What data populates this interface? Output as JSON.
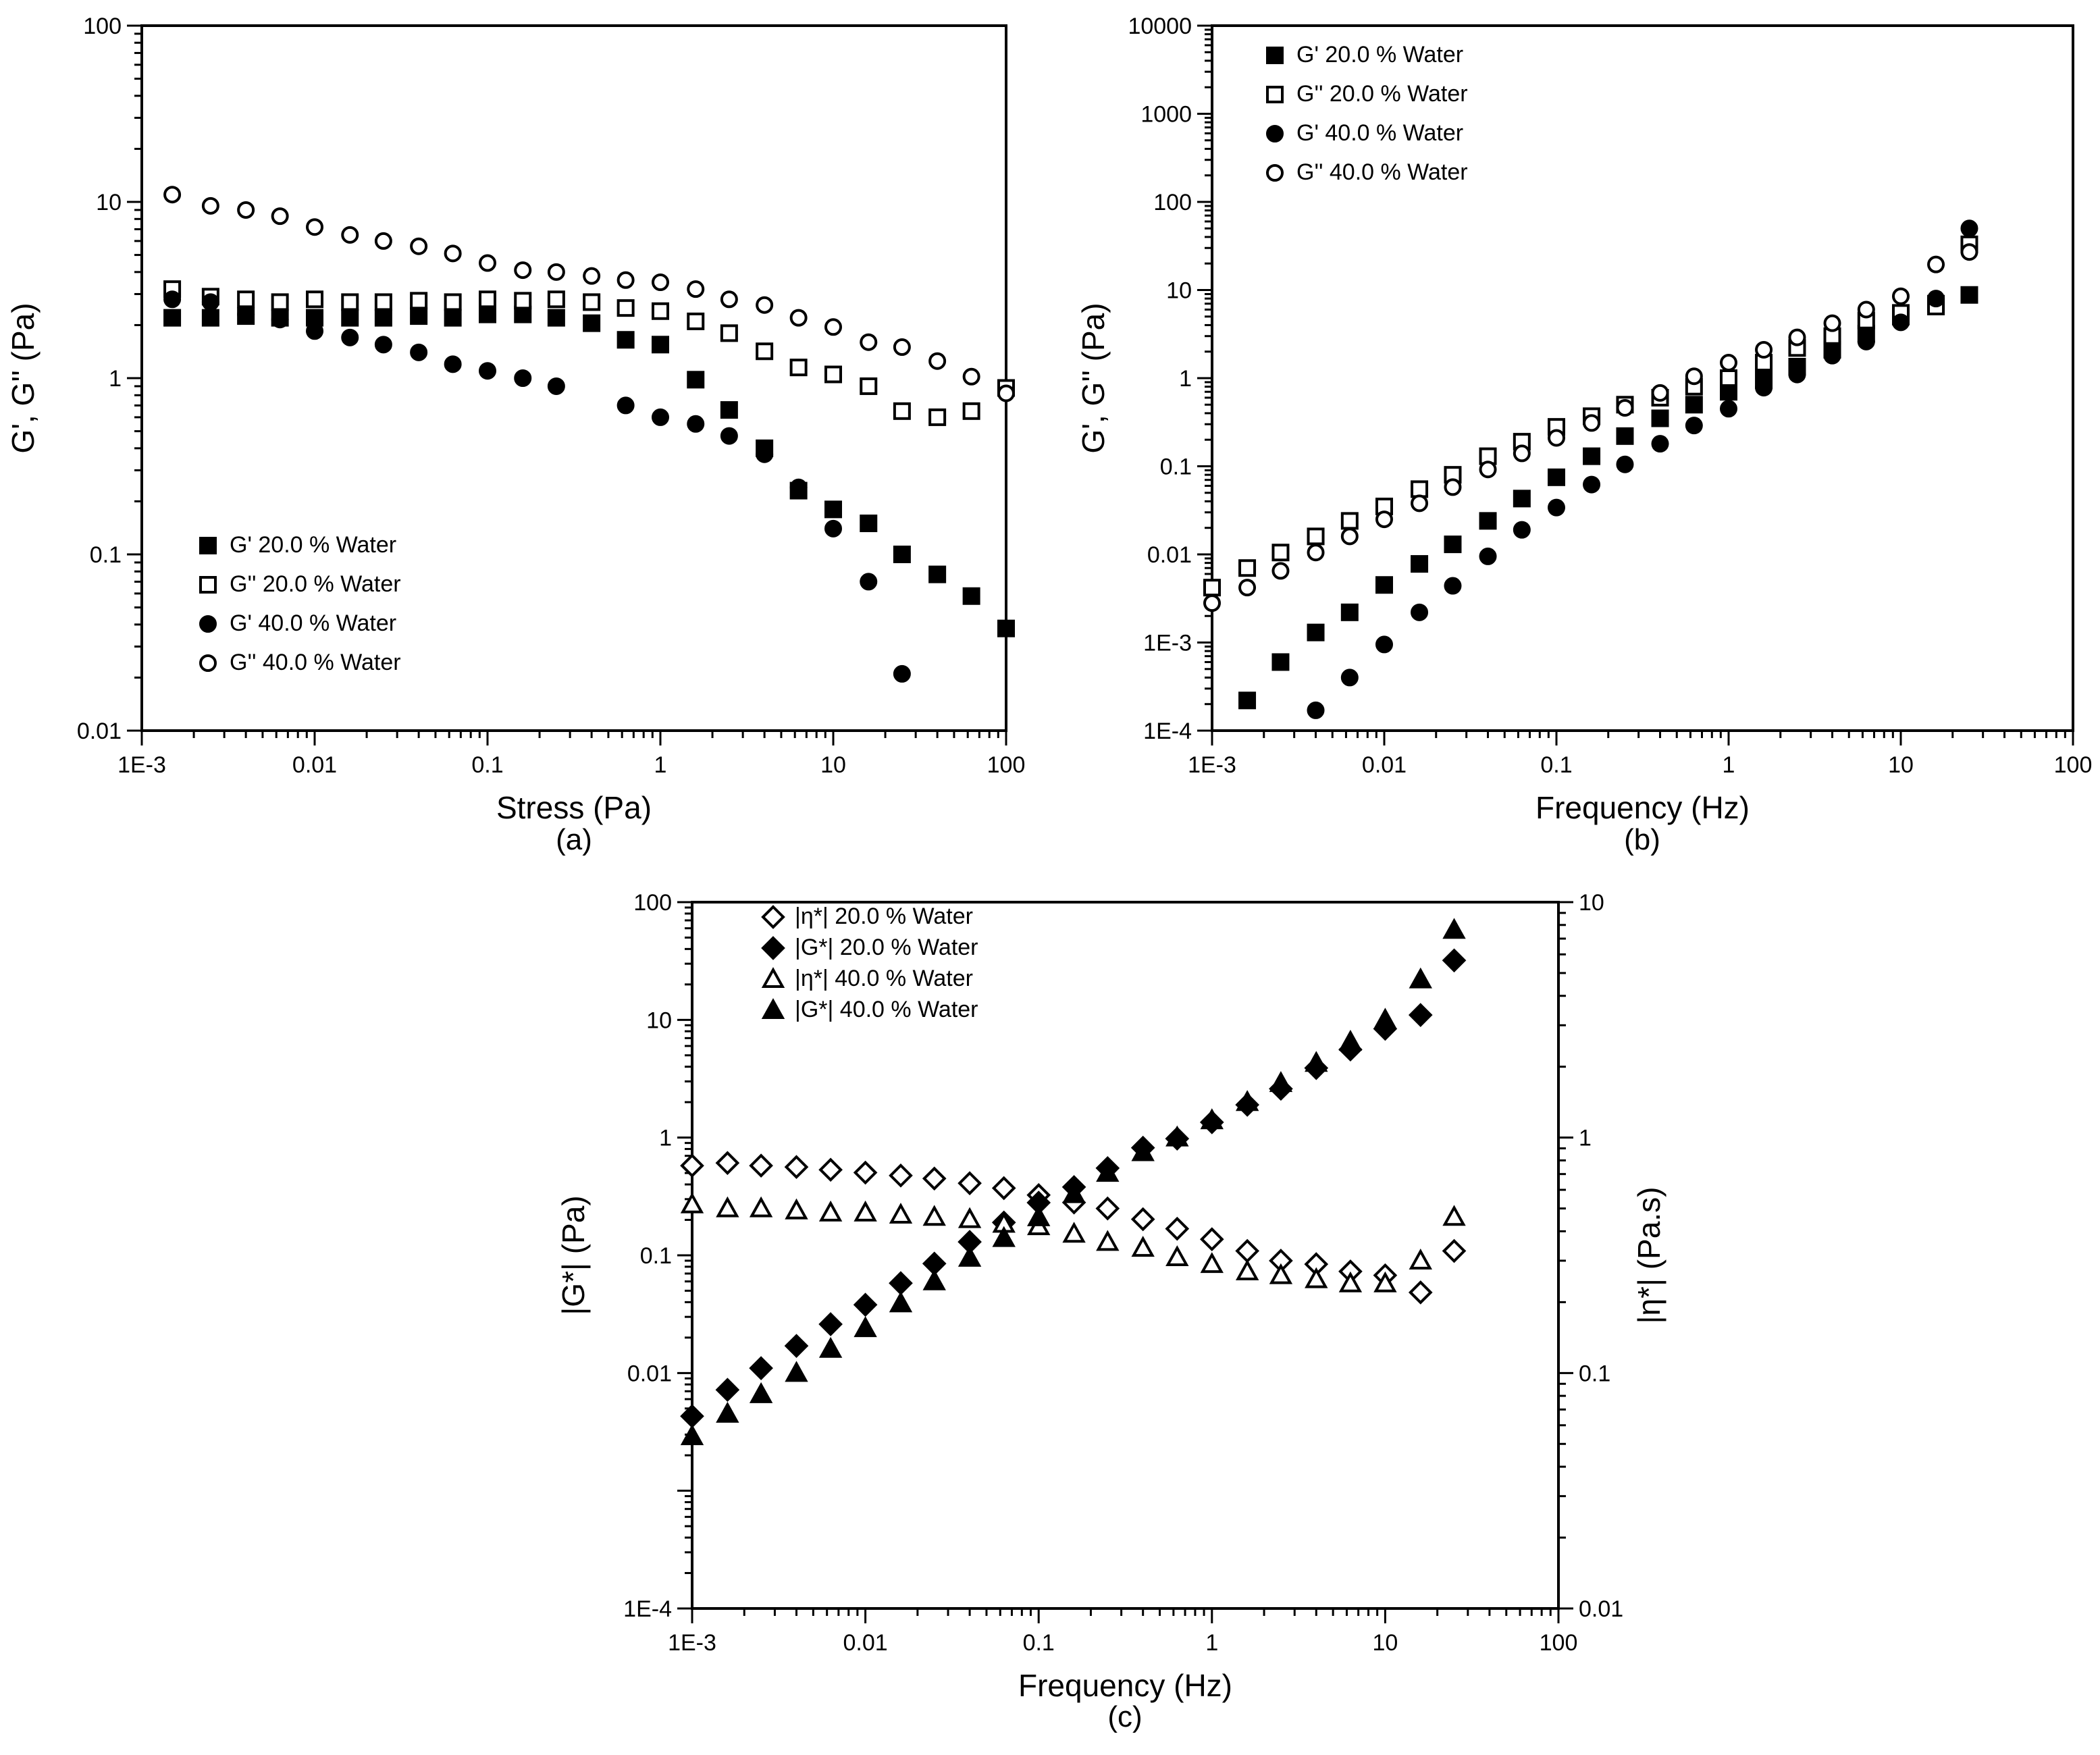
{
  "chart_data": [
    {
      "panel": "(a)",
      "type": "scatter",
      "x_scale": "log",
      "y_scale": "log",
      "xlabel": "Stress (Pa)",
      "ylabel": "G', G'' (Pa)",
      "xlim": [
        0.001,
        100
      ],
      "ylim": [
        0.01,
        100
      ],
      "xticks": [
        0.001,
        0.01,
        0.1,
        1,
        10,
        100
      ],
      "xtick_labels": [
        "1E-3",
        "0.01",
        "0.1",
        "1",
        "10",
        "100"
      ],
      "yticks": [
        0.01,
        0.1,
        1,
        10,
        100
      ],
      "ytick_labels": [
        "0.01",
        "0.1",
        "1",
        "10",
        "100"
      ],
      "legend_position": "bottom-left",
      "series": [
        {
          "name": "G' 20.0 % Water",
          "marker": "square-filled",
          "x": [
            0.0015,
            0.0025,
            0.004,
            0.0063,
            0.01,
            0.016,
            0.025,
            0.04,
            0.063,
            0.1,
            0.16,
            0.25,
            0.4,
            0.63,
            1,
            1.6,
            2.5,
            4,
            6.3,
            10,
            16,
            25,
            40,
            63,
            100
          ],
          "y": [
            2.2,
            2.2,
            2.25,
            2.2,
            2.2,
            2.2,
            2.2,
            2.25,
            2.2,
            2.3,
            2.3,
            2.2,
            2.05,
            1.65,
            1.55,
            0.98,
            0.66,
            0.4,
            0.23,
            0.18,
            0.15,
            0.1,
            0.077,
            0.058,
            0.038
          ]
        },
        {
          "name": "G'' 20.0 % Water",
          "marker": "square-open",
          "x": [
            0.0015,
            0.0025,
            0.004,
            0.0063,
            0.01,
            0.016,
            0.025,
            0.04,
            0.063,
            0.1,
            0.16,
            0.25,
            0.4,
            0.63,
            1,
            1.6,
            2.5,
            4,
            6.3,
            10,
            16,
            25,
            40,
            63,
            100
          ],
          "y": [
            3.2,
            2.9,
            2.8,
            2.7,
            2.8,
            2.7,
            2.7,
            2.75,
            2.7,
            2.8,
            2.75,
            2.8,
            2.7,
            2.5,
            2.4,
            2.1,
            1.8,
            1.42,
            1.15,
            1.05,
            0.9,
            0.65,
            0.6,
            0.65,
            0.88
          ]
        },
        {
          "name": "G' 40.0 % Water",
          "marker": "circle-filled",
          "x": [
            0.0015,
            0.0025,
            0.004,
            0.0063,
            0.01,
            0.016,
            0.025,
            0.04,
            0.063,
            0.1,
            0.16,
            0.25,
            0.63,
            1,
            1.6,
            2.5,
            4,
            6.3,
            10,
            16,
            25
          ],
          "y": [
            2.8,
            2.7,
            2.3,
            2.15,
            1.85,
            1.7,
            1.55,
            1.4,
            1.2,
            1.1,
            1.0,
            0.9,
            0.7,
            0.6,
            0.55,
            0.47,
            0.37,
            0.24,
            0.14,
            0.07,
            0.021
          ]
        },
        {
          "name": "G'' 40.0 % Water",
          "marker": "circle-open",
          "x": [
            0.0015,
            0.0025,
            0.004,
            0.0063,
            0.01,
            0.016,
            0.025,
            0.04,
            0.063,
            0.1,
            0.16,
            0.25,
            0.4,
            0.63,
            1,
            1.6,
            2.5,
            4,
            6.3,
            10,
            16,
            25,
            40,
            63,
            100
          ],
          "y": [
            11,
            9.5,
            9.0,
            8.3,
            7.2,
            6.5,
            6.0,
            5.6,
            5.1,
            4.5,
            4.1,
            4.0,
            3.8,
            3.6,
            3.5,
            3.2,
            2.8,
            2.6,
            2.2,
            1.95,
            1.6,
            1.5,
            1.25,
            1.02,
            0.82
          ]
        }
      ]
    },
    {
      "panel": "(b)",
      "type": "scatter",
      "x_scale": "log",
      "y_scale": "log",
      "xlabel": "Frequency (Hz)",
      "ylabel": "G', G'' (Pa)",
      "xlim": [
        0.001,
        100
      ],
      "ylim": [
        0.0001,
        10000
      ],
      "xticks": [
        0.001,
        0.01,
        0.1,
        1,
        10,
        100
      ],
      "xtick_labels": [
        "1E-3",
        "0.01",
        "0.1",
        "1",
        "10",
        "100"
      ],
      "yticks": [
        0.0001,
        0.001,
        0.01,
        0.1,
        1,
        10,
        100,
        1000,
        10000
      ],
      "ytick_labels": [
        "1E-4",
        "1E-3",
        "0.01",
        "0.1",
        "1",
        "10",
        "100",
        "1000",
        "10000"
      ],
      "legend_position": "top-left",
      "series": [
        {
          "name": "G' 20.0 % Water",
          "marker": "square-filled",
          "x": [
            0.0016,
            0.0025,
            0.004,
            0.0063,
            0.01,
            0.016,
            0.025,
            0.04,
            0.063,
            0.1,
            0.16,
            0.25,
            0.4,
            0.63,
            1,
            1.6,
            2.5,
            4,
            6.3,
            10,
            16,
            25
          ],
          "y": [
            0.00022,
            0.0006,
            0.0013,
            0.0022,
            0.0045,
            0.0078,
            0.013,
            0.024,
            0.043,
            0.075,
            0.13,
            0.22,
            0.35,
            0.5,
            0.7,
            0.95,
            1.35,
            2.1,
            3.2,
            5.0,
            7.0,
            8.8
          ]
        },
        {
          "name": "G'' 20.0 % Water",
          "marker": "square-open",
          "x": [
            0.001,
            0.0016,
            0.0025,
            0.004,
            0.0063,
            0.01,
            0.016,
            0.025,
            0.04,
            0.063,
            0.1,
            0.16,
            0.25,
            0.4,
            0.63,
            1,
            1.6,
            2.5,
            4,
            6.3,
            10,
            16,
            25
          ],
          "y": [
            0.0042,
            0.007,
            0.0105,
            0.016,
            0.024,
            0.035,
            0.055,
            0.08,
            0.13,
            0.19,
            0.28,
            0.37,
            0.5,
            0.6,
            0.8,
            1.0,
            1.5,
            2.2,
            3.0,
            4.5,
            5.5,
            6.5,
            33
          ]
        },
        {
          "name": "G' 40.0 % Water",
          "marker": "circle-filled",
          "x": [
            0.004,
            0.0063,
            0.01,
            0.016,
            0.025,
            0.04,
            0.063,
            0.1,
            0.16,
            0.25,
            0.4,
            0.63,
            1,
            1.6,
            2.5,
            4,
            6.3,
            10,
            16,
            25
          ],
          "y": [
            0.00017,
            0.0004,
            0.00095,
            0.0022,
            0.0044,
            0.0095,
            0.019,
            0.034,
            0.062,
            0.105,
            0.18,
            0.29,
            0.45,
            0.78,
            1.1,
            1.8,
            2.6,
            4.3,
            8.0,
            50
          ]
        },
        {
          "name": "G'' 40.0 % Water",
          "marker": "circle-open",
          "x": [
            0.001,
            0.0016,
            0.0025,
            0.004,
            0.0063,
            0.01,
            0.016,
            0.025,
            0.04,
            0.063,
            0.1,
            0.16,
            0.25,
            0.4,
            0.63,
            1,
            1.6,
            2.5,
            4,
            6.3,
            10,
            16,
            25
          ],
          "y": [
            0.0028,
            0.0042,
            0.0065,
            0.0105,
            0.016,
            0.025,
            0.038,
            0.058,
            0.092,
            0.14,
            0.21,
            0.31,
            0.46,
            0.68,
            1.05,
            1.5,
            2.1,
            2.9,
            4.2,
            6.0,
            8.5,
            19.5,
            27
          ]
        }
      ]
    },
    {
      "panel": "(c)",
      "type": "scatter",
      "x_scale": "log",
      "y_scale": "log",
      "y2_scale": "log",
      "xlabel": "Frequency (Hz)",
      "ylabel": "|G*| (Pa)",
      "y2label": "|η*| (Pa.s)",
      "xlim": [
        0.001,
        100
      ],
      "ylim": [
        0.0001,
        100
      ],
      "y2lim": [
        0.01,
        10
      ],
      "xticks": [
        0.001,
        0.01,
        0.1,
        1,
        10,
        100
      ],
      "xtick_labels": [
        "1E-3",
        "0.01",
        "0.1",
        "1",
        "10",
        "100"
      ],
      "yticks": [
        0.0001,
        0.01,
        0.1,
        1,
        10,
        100
      ],
      "ytick_labels": [
        "1E-4",
        "0.01",
        "0.1",
        "1",
        "10",
        "100"
      ],
      "y2ticks": [
        0.01,
        0.1,
        1,
        10
      ],
      "y2tick_labels": [
        "0.01",
        "0.1",
        "1",
        "10"
      ],
      "legend_position": "top-left",
      "series": [
        {
          "name": "|η*| 20.0 % Water",
          "marker": "diamond-open",
          "axis": "right",
          "x": [
            0.001,
            0.0016,
            0.0025,
            0.004,
            0.0063,
            0.01,
            0.016,
            0.025,
            0.04,
            0.063,
            0.1,
            0.16,
            0.25,
            0.4,
            0.63,
            1,
            1.6,
            2.5,
            4,
            6.3,
            10,
            16,
            25
          ],
          "y": [
            0.76,
            0.78,
            0.76,
            0.75,
            0.73,
            0.71,
            0.69,
            0.67,
            0.64,
            0.61,
            0.57,
            0.53,
            0.5,
            0.45,
            0.41,
            0.37,
            0.33,
            0.3,
            0.29,
            0.27,
            0.26,
            0.22,
            0.33
          ]
        },
        {
          "name": "|G*| 20.0 % Water",
          "marker": "diamond-filled",
          "axis": "left",
          "x": [
            0.001,
            0.0016,
            0.0025,
            0.004,
            0.0063,
            0.01,
            0.016,
            0.025,
            0.04,
            0.063,
            0.1,
            0.16,
            0.25,
            0.4,
            0.63,
            1,
            1.6,
            2.5,
            4,
            6.3,
            10,
            16,
            25
          ],
          "y": [
            0.0043,
            0.0072,
            0.011,
            0.017,
            0.026,
            0.038,
            0.058,
            0.085,
            0.13,
            0.19,
            0.28,
            0.38,
            0.55,
            0.82,
            0.98,
            1.35,
            1.9,
            2.6,
            3.9,
            5.6,
            8.4,
            11,
            32
          ]
        },
        {
          "name": "|η*| 40.0 % Water",
          "marker": "triangle-open",
          "axis": "right",
          "x": [
            0.001,
            0.0016,
            0.0025,
            0.004,
            0.0063,
            0.01,
            0.016,
            0.025,
            0.04,
            0.063,
            0.1,
            0.16,
            0.25,
            0.4,
            0.63,
            1,
            1.6,
            2.5,
            4,
            6.3,
            10,
            16,
            25
          ],
          "y": [
            0.52,
            0.5,
            0.5,
            0.49,
            0.48,
            0.48,
            0.47,
            0.46,
            0.45,
            0.43,
            0.42,
            0.39,
            0.36,
            0.34,
            0.31,
            0.29,
            0.27,
            0.26,
            0.25,
            0.24,
            0.24,
            0.3,
            0.46
          ]
        },
        {
          "name": "|G*| 40.0 % Water",
          "marker": "triangle-filled",
          "axis": "left",
          "x": [
            0.001,
            0.0016,
            0.0025,
            0.004,
            0.0063,
            0.01,
            0.016,
            0.025,
            0.04,
            0.063,
            0.1,
            0.16,
            0.25,
            0.4,
            0.63,
            1,
            1.6,
            2.5,
            4,
            6.3,
            10,
            16,
            25
          ],
          "y": [
            0.0029,
            0.0045,
            0.0066,
            0.01,
            0.016,
            0.024,
            0.039,
            0.06,
            0.095,
            0.14,
            0.21,
            0.33,
            0.5,
            0.75,
            1.0,
            1.4,
            2.0,
            2.9,
            4.3,
            6.5,
            10,
            22,
            58
          ]
        }
      ]
    }
  ]
}
